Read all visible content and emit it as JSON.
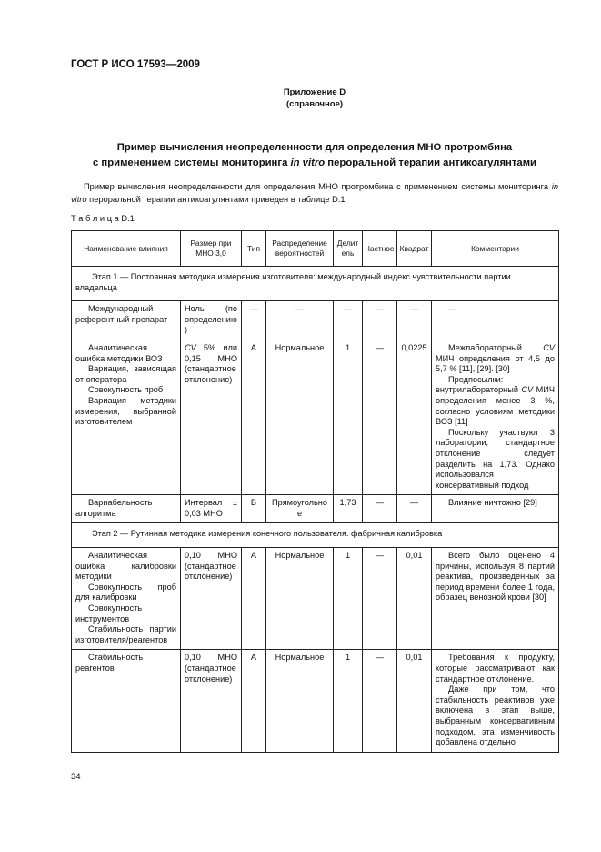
{
  "header": {
    "title": "ГОСТ Р ИСО 17593—2009"
  },
  "annex": {
    "label": "Приложение D",
    "note": "(справочное)"
  },
  "title": [
    "Пример вычисления неопределенности для определения МНО протромбина",
    [
      "с применением системы мониторинга ",
      {
        "text": "in vitro",
        "style": "italic"
      },
      " пероральной терапии антикоагулянтами"
    ]
  ],
  "intro": [
    "Пример вычисления неопределенности для определения МНО протромбина с применением системы мониторинга ",
    {
      "text": "in vitro",
      "style": "italic"
    },
    " пероральной терапии антикоагулянтами приведен в таблице D.1"
  ],
  "table": {
    "caption": "Т а б л и ц а  D.1",
    "columns": [
      "Наименование влияния",
      "Размер при МНО 3,0",
      "Тип",
      "Распределение вероятностей",
      "Делитель",
      "Частное",
      "Квадрат",
      "Комментарии"
    ],
    "rows": [
      {
        "stage": "Этап 1 — Постоянная методика измерения изготовителя: международный индекс чувствительности партии владельца"
      },
      {
        "cells": [
          [
            "Международный референтный препарат"
          ],
          [
            "Ноль (по определению)"
          ],
          "—",
          "—",
          "—",
          "—",
          "—",
          [
            "—"
          ]
        ]
      },
      {
        "cells": [
          [
            "Аналитическая ошибка методики ВОЗ",
            "Вариация, зависящая от оператора",
            "Совокупность проб",
            "Вариация методики измерения, выбранной изготовителем"
          ],
          [
            [
              {
                "text": "CV",
                "style": "italic"
              },
              " 5% или 0,15 МНО (стандартное отклонение)"
            ]
          ],
          "А",
          "Нормальное",
          "1",
          "—",
          "0,0225",
          [
            [
              "Межлабораторный ",
              {
                "text": "CV",
                "style": "italic"
              },
              " МИЧ определения от 4,5 до 5,7 % [11], [29]. [30]"
            ],
            [
              "Предпосылки: внутрилабораторный ",
              {
                "text": "CV",
                "style": "italic"
              },
              " МИЧ определения менее 3 %, согласно условиям методики ВОЗ [11]"
            ],
            "Поскольку участвуют 3 лаборатории, стандартное отклонение следует разделить на 1,73. Однако использовался консервативный подход"
          ]
        ]
      },
      {
        "cells": [
          [
            "Вариабельность алгоритма"
          ],
          [
            "Интервал ± 0,03 МНО"
          ],
          "В",
          "Прямоугольное",
          "1,73",
          "—",
          "—",
          [
            "Влияние ничтожно [29]"
          ]
        ]
      },
      {
        "stage": "Этап 2 — Рутинная методика измерения конечного пользователя. фабричная калибровка"
      },
      {
        "cells": [
          [
            "Аналитическая ошибка калибровки методики",
            "Совокупность проб для калибровки",
            "Совокупность инструментов",
            "Стабильность партии изготовителя/реагентов"
          ],
          [
            "0,10 МНО (стандартное отклонение)"
          ],
          "А",
          "Нормальное",
          "1",
          "—",
          "0,01",
          [
            "Всего было оценено 4 причины, используя 8 партий реактива, произведенных за период времени более 1 года, образец венозной крови [30]"
          ]
        ]
      },
      {
        "cells": [
          [
            "Стабильность реагентов"
          ],
          [
            "0,10 МНО (стандартное отклонение)"
          ],
          "А",
          "Нормальное",
          "1",
          "—",
          "0,01",
          [
            "Требования к продукту, которые рассматривают как стандартное отклонение.",
            "Даже при том, что стабильность реактивов уже включена в этап выше, выбранным консервативным подходом, эта изменчивость добавлена отдельно"
          ]
        ]
      }
    ]
  },
  "footer": {
    "page": "34"
  }
}
